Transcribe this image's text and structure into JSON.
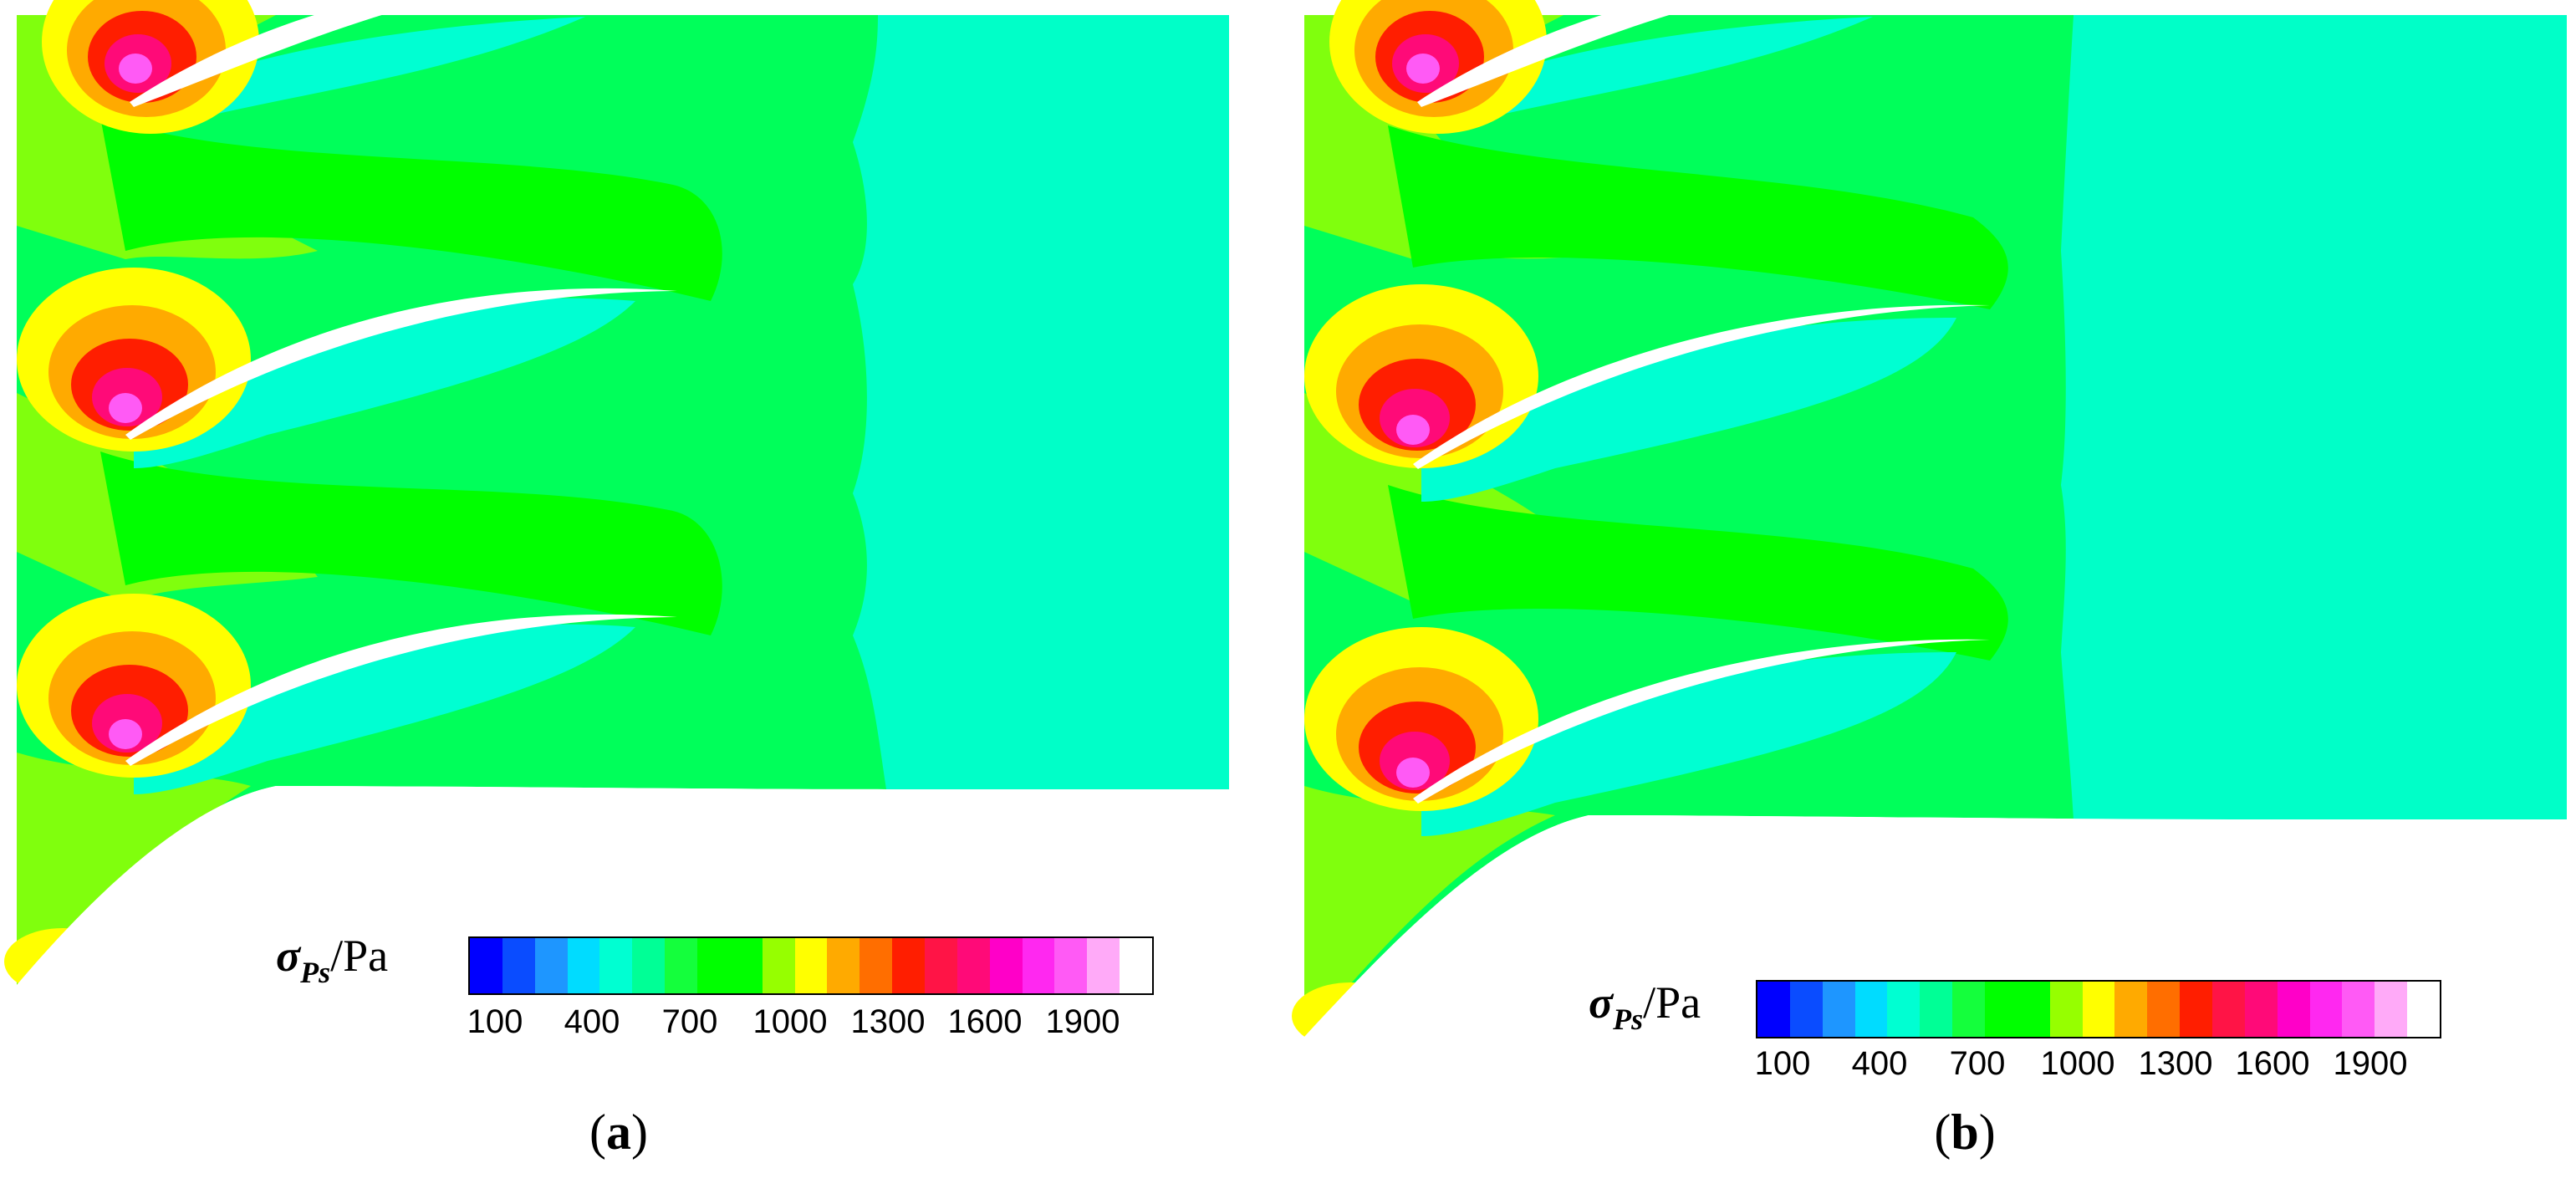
{
  "colorbar": {
    "symbol": "σ",
    "subscript": "Ps",
    "unit": "/Pa",
    "tick_labels": [
      "100",
      "400",
      "700",
      "1000",
      "1300",
      "1600",
      "1900"
    ],
    "colors": [
      "#0000ff",
      "#0a4cff",
      "#1e96ff",
      "#00dcff",
      "#00ffd2",
      "#00ff96",
      "#14ff3c",
      "#00ff00",
      "#00ff00",
      "#96ff00",
      "#ffff00",
      "#ffaa00",
      "#ff6e00",
      "#ff1e00",
      "#ff1446",
      "#ff0a78",
      "#ff00c8",
      "#ff28f0",
      "#ff5af5",
      "#ffaaf8",
      "#ffffff"
    ]
  },
  "contour_colors": {
    "background_green": "#00ff5a",
    "bright_green": "#00ff00",
    "lime": "#96ff00",
    "cyan_region": "#00ffc8",
    "blade_wake": "#00ffd2",
    "yellow": "#ffff00",
    "orange": "#ffaa00",
    "dark_orange": "#ff6e00",
    "red": "#ff1e00",
    "crimson": "#ff0a78",
    "magenta": "#ff00c8",
    "pink": "#ff5af5"
  },
  "panels": [
    {
      "caption_open": "(",
      "caption_label": "a",
      "caption_close": ")"
    },
    {
      "caption_open": "(",
      "caption_label": "b",
      "caption_close": ")"
    }
  ]
}
